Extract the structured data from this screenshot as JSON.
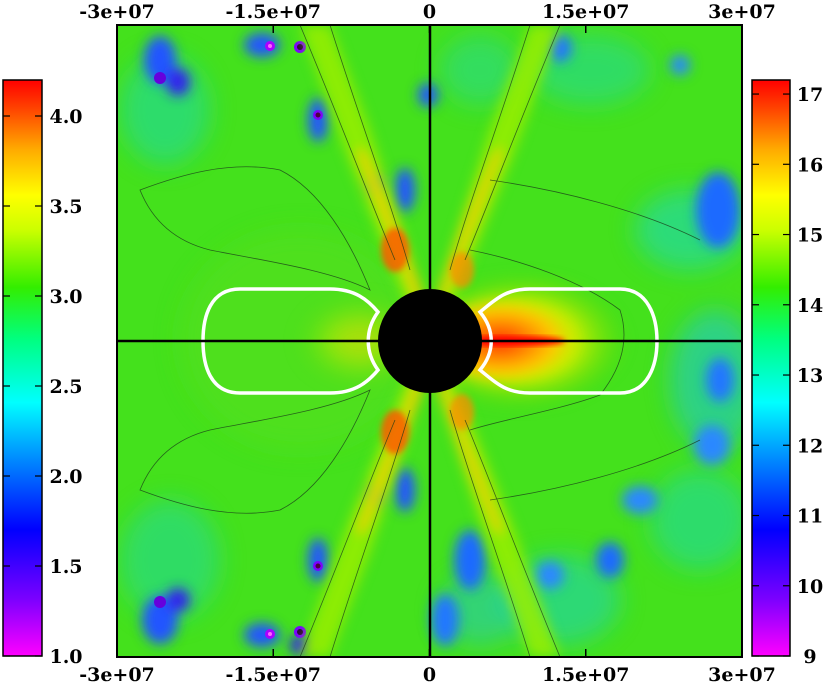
{
  "chart_data": {
    "type": "heatmap",
    "title": "",
    "xlabel": "",
    "ylabel": "",
    "x_range": [
      -30000000,
      30000000
    ],
    "y_range": [
      -30000000,
      30000000
    ],
    "x_ticks_top": [
      "-3e+07",
      "-1.5e+07",
      "0",
      "1.5e+07",
      "3e+07"
    ],
    "x_ticks_bottom": [
      "-3e+07",
      "-1.5e+07",
      "0",
      "1.5e+07",
      "3e+07"
    ],
    "x_tick_values": [
      -30000000,
      -15000000,
      0,
      15000000,
      30000000
    ],
    "left_colorbar": {
      "range": [
        1.0,
        4.2
      ],
      "ticks": [
        "1.0",
        "1.5",
        "2.0",
        "2.5",
        "3.0",
        "3.5",
        "4.0"
      ],
      "tick_values": [
        1.0,
        1.5,
        2.0,
        2.5,
        3.0,
        3.5,
        4.0
      ],
      "applies_to": "left half"
    },
    "right_colorbar": {
      "range": [
        9,
        17.2
      ],
      "ticks": [
        "9",
        "10",
        "11",
        "12",
        "13",
        "14",
        "15",
        "16",
        "17"
      ],
      "tick_values": [
        9,
        10,
        11,
        12,
        13,
        14,
        15,
        16,
        17
      ],
      "applies_to": "right half"
    },
    "central_disk_radius": 4800000,
    "features": {
      "white_contour_x_extent": [
        -20000000,
        20000000
      ],
      "white_contour_y_extent": [
        -4700000,
        4700000
      ],
      "jet_lobes": "X-shaped high-value lobes along diagonals from the centre",
      "crosshair_axes": [
        "x = 0",
        "y = 0"
      ]
    },
    "colormap": [
      "#ff00ff",
      "#7700ff",
      "#0000ff",
      "#0088ff",
      "#00ffff",
      "#00ff66",
      "#33dd00",
      "#ccff00",
      "#ffff00",
      "#ffaa00",
      "#ff5500",
      "#ff0000"
    ],
    "grid": false,
    "legend": "none"
  }
}
